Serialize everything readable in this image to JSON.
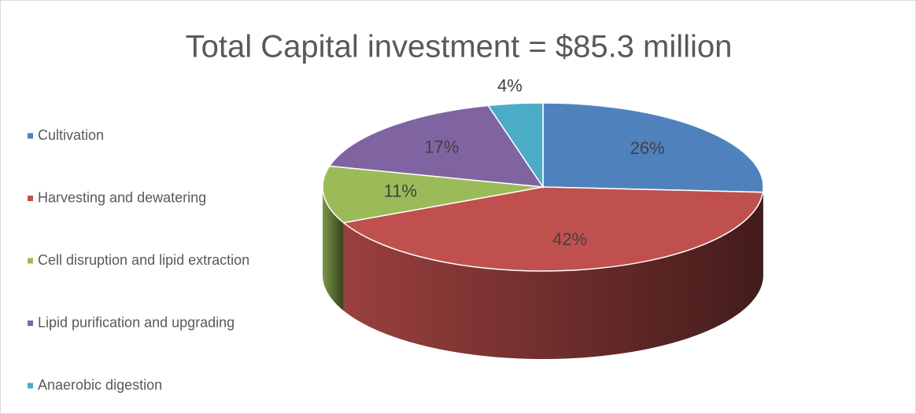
{
  "chart_data": {
    "type": "pie",
    "title": "Total Capital investment = $85.3 million",
    "categories": [
      "Cultivation",
      "Harvesting and dewatering",
      "Cell disruption and lipid extraction",
      "Lipid purification and upgrading",
      "Anaerobic digestion"
    ],
    "values": [
      26,
      42,
      11,
      17,
      4
    ],
    "value_labels": [
      "26%",
      "42%",
      "11%",
      "17%",
      "4%"
    ],
    "colors": [
      "#4f81bd",
      "#c0504d",
      "#9bbb59",
      "#8064a2",
      "#4bacc6"
    ],
    "legend": "left"
  }
}
